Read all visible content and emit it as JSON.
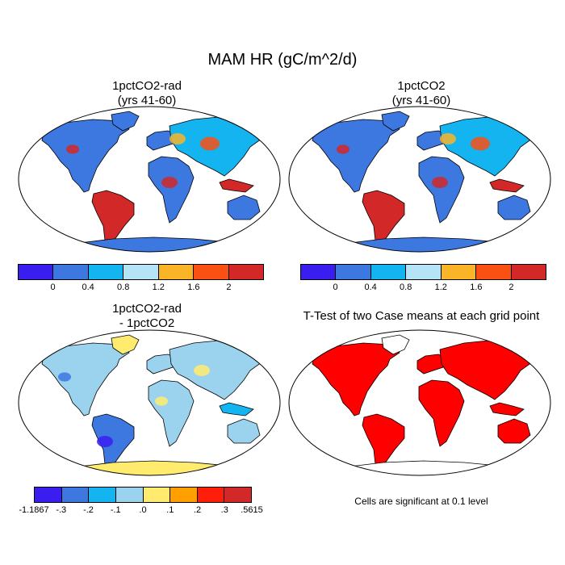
{
  "title": "MAM HR (gC/m^2/d)",
  "colors": {
    "land_outline": "#000000",
    "ocean": "#ffffff",
    "scale_main": [
      "#3a1ef0",
      "#3c78e0",
      "#14b4f0",
      "#b4e4f5",
      "#fab428",
      "#fa5014",
      "#d22828"
    ],
    "scale_diff": [
      "#3a1ef0",
      "#3c78e0",
      "#14b4f0",
      "#9bd2ee",
      "#ffec6e",
      "#ffa000",
      "#ff1e0a",
      "#d22828"
    ],
    "significant": "#ff0000"
  },
  "panels": [
    {
      "id": "p1",
      "title_line1": "1pctCO2-rad",
      "title_line2": "(yrs 41-60)",
      "colorbar_ticks": [
        "0",
        "0.4",
        "0.8",
        "1.2",
        "1.6",
        "2"
      ]
    },
    {
      "id": "p2",
      "title_line1": "1pctCO2",
      "title_line2": "(yrs 41-60)",
      "colorbar_ticks": [
        "0",
        "0.4",
        "0.8",
        "1.2",
        "1.6",
        "2"
      ]
    },
    {
      "id": "p3",
      "title_line1": "1pctCO2-rad",
      "title_line2": "- 1pctCO2",
      "colorbar_ticks": [
        "-1.1867",
        "-.3",
        "-.2",
        "-.1",
        ".0",
        ".1",
        ".2",
        ".3",
        ".5615"
      ]
    },
    {
      "id": "p4",
      "title_line1": "T-Test of two Case means at each grid point",
      "note": "Cells are significant at 0.1 level"
    }
  ]
}
